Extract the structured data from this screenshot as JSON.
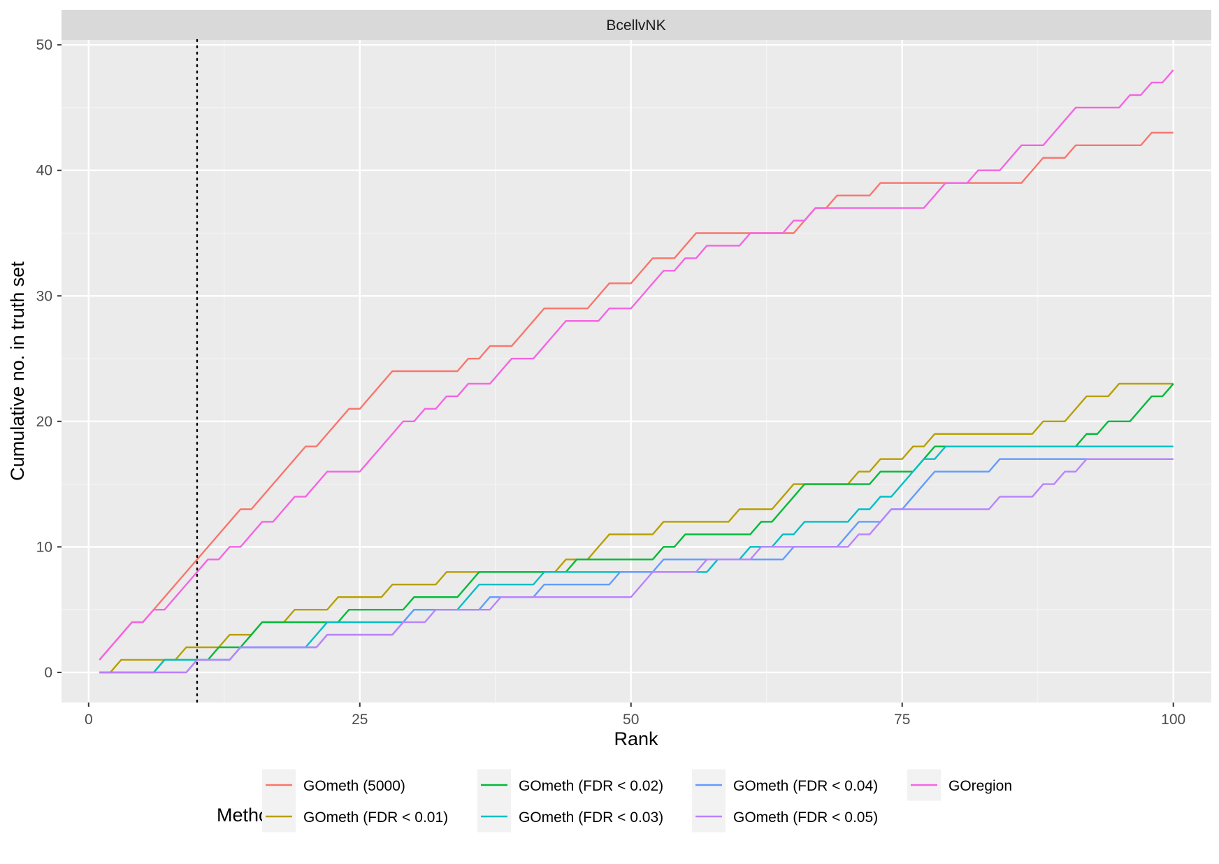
{
  "chart_data": {
    "type": "line",
    "facet_label": "BcellvNK",
    "xlabel": "Rank",
    "ylabel": "Cumulative no. in truth set",
    "xlim": [
      -2.5,
      103.5
    ],
    "ylim": [
      -2.4,
      50.4
    ],
    "x_ticks": [
      0,
      25,
      50,
      75,
      100
    ],
    "x_tick_labels": [
      "0",
      "25",
      "50",
      "75",
      "100"
    ],
    "y_ticks": [
      0,
      10,
      20,
      30,
      40,
      50
    ],
    "y_tick_labels": [
      "0",
      "10",
      "20",
      "30",
      "40",
      "50"
    ],
    "vline": {
      "x": 10,
      "style": "dotted"
    },
    "grid": true,
    "legend": {
      "title": "Method",
      "position": "bottom"
    },
    "series": [
      {
        "name": "GOmeth (5000)",
        "color": "#F8766D",
        "values": [
          1,
          2,
          3,
          4,
          4,
          5,
          6,
          7,
          8,
          9,
          10,
          11,
          12,
          13,
          13,
          14,
          15,
          16,
          17,
          18,
          18,
          19,
          20,
          21,
          21,
          22,
          23,
          24,
          24,
          24,
          24,
          24,
          24,
          24,
          25,
          25,
          26,
          26,
          26,
          27,
          28,
          29,
          29,
          29,
          29,
          29,
          30,
          31,
          31,
          31,
          32,
          33,
          33,
          33,
          34,
          35,
          35,
          35,
          35,
          35,
          35,
          35,
          35,
          35,
          35,
          36,
          37,
          37,
          38,
          38,
          38,
          38,
          39,
          39,
          39,
          39,
          39,
          39,
          39,
          39,
          39,
          39,
          39,
          39,
          39,
          39,
          40,
          41,
          41,
          41,
          42,
          42,
          42,
          42,
          42,
          42,
          42,
          43,
          43,
          43
        ]
      },
      {
        "name": "GOmeth (FDR < 0.01)",
        "color": "#B79F00",
        "values": [
          0,
          0,
          1,
          1,
          1,
          1,
          1,
          1,
          2,
          2,
          2,
          2,
          3,
          3,
          3,
          4,
          4,
          4,
          5,
          5,
          5,
          5,
          6,
          6,
          6,
          6,
          6,
          7,
          7,
          7,
          7,
          7,
          8,
          8,
          8,
          8,
          8,
          8,
          8,
          8,
          8,
          8,
          8,
          9,
          9,
          9,
          10,
          11,
          11,
          11,
          11,
          11,
          12,
          12,
          12,
          12,
          12,
          12,
          12,
          13,
          13,
          13,
          13,
          14,
          15,
          15,
          15,
          15,
          15,
          15,
          16,
          16,
          17,
          17,
          17,
          18,
          18,
          19,
          19,
          19,
          19,
          19,
          19,
          19,
          19,
          19,
          19,
          20,
          20,
          20,
          21,
          22,
          22,
          22,
          23,
          23,
          23,
          23,
          23,
          23
        ]
      },
      {
        "name": "GOmeth (FDR < 0.02)",
        "color": "#00BA38",
        "values": [
          0,
          0,
          0,
          0,
          0,
          0,
          1,
          1,
          1,
          1,
          1,
          2,
          2,
          2,
          3,
          4,
          4,
          4,
          4,
          4,
          4,
          4,
          4,
          5,
          5,
          5,
          5,
          5,
          5,
          6,
          6,
          6,
          6,
          6,
          7,
          8,
          8,
          8,
          8,
          8,
          8,
          8,
          8,
          8,
          9,
          9,
          9,
          9,
          9,
          9,
          9,
          9,
          10,
          10,
          11,
          11,
          11,
          11,
          11,
          11,
          11,
          12,
          12,
          13,
          14,
          15,
          15,
          15,
          15,
          15,
          15,
          15,
          16,
          16,
          16,
          16,
          17,
          18,
          18,
          18,
          18,
          18,
          18,
          18,
          18,
          18,
          18,
          18,
          18,
          18,
          18,
          19,
          19,
          20,
          20,
          20,
          21,
          22,
          22,
          23
        ]
      },
      {
        "name": "GOmeth (FDR < 0.03)",
        "color": "#00BFC4",
        "values": [
          0,
          0,
          0,
          0,
          0,
          0,
          1,
          1,
          1,
          1,
          1,
          1,
          1,
          2,
          2,
          2,
          2,
          2,
          2,
          2,
          3,
          4,
          4,
          4,
          4,
          4,
          4,
          4,
          4,
          5,
          5,
          5,
          5,
          5,
          6,
          7,
          7,
          7,
          7,
          7,
          7,
          8,
          8,
          8,
          8,
          8,
          8,
          8,
          8,
          8,
          8,
          8,
          8,
          8,
          8,
          8,
          8,
          9,
          9,
          9,
          10,
          10,
          10,
          11,
          11,
          12,
          12,
          12,
          12,
          12,
          13,
          13,
          14,
          14,
          15,
          16,
          17,
          17,
          18,
          18,
          18,
          18,
          18,
          18,
          18,
          18,
          18,
          18,
          18,
          18,
          18,
          18,
          18,
          18,
          18,
          18,
          18,
          18,
          18,
          18
        ]
      },
      {
        "name": "GOmeth (FDR < 0.04)",
        "color": "#619CFF",
        "values": [
          0,
          0,
          0,
          0,
          0,
          0,
          0,
          0,
          0,
          1,
          1,
          1,
          1,
          2,
          2,
          2,
          2,
          2,
          2,
          2,
          2,
          3,
          3,
          3,
          3,
          3,
          3,
          3,
          4,
          5,
          5,
          5,
          5,
          5,
          5,
          5,
          6,
          6,
          6,
          6,
          6,
          7,
          7,
          7,
          7,
          7,
          7,
          7,
          8,
          8,
          8,
          8,
          9,
          9,
          9,
          9,
          9,
          9,
          9,
          9,
          9,
          9,
          9,
          9,
          10,
          10,
          10,
          10,
          10,
          11,
          12,
          12,
          12,
          13,
          13,
          14,
          15,
          16,
          16,
          16,
          16,
          16,
          16,
          17,
          17,
          17,
          17,
          17,
          17,
          17,
          17,
          17,
          17,
          17,
          17,
          17,
          17,
          17,
          17,
          17
        ]
      },
      {
        "name": "GOmeth (FDR < 0.05)",
        "color": "#B983FF",
        "values": [
          0,
          0,
          0,
          0,
          0,
          0,
          0,
          0,
          0,
          1,
          1,
          1,
          1,
          2,
          2,
          2,
          2,
          2,
          2,
          2,
          2,
          3,
          3,
          3,
          3,
          3,
          3,
          3,
          4,
          4,
          4,
          5,
          5,
          5,
          5,
          5,
          5,
          6,
          6,
          6,
          6,
          6,
          6,
          6,
          6,
          6,
          6,
          6,
          6,
          6,
          7,
          8,
          8,
          8,
          8,
          8,
          9,
          9,
          9,
          9,
          9,
          10,
          10,
          10,
          10,
          10,
          10,
          10,
          10,
          10,
          11,
          11,
          12,
          13,
          13,
          13,
          13,
          13,
          13,
          13,
          13,
          13,
          13,
          14,
          14,
          14,
          14,
          15,
          15,
          16,
          16,
          17,
          17,
          17,
          17,
          17,
          17,
          17,
          17,
          17
        ]
      },
      {
        "name": "GOregion",
        "color": "#F564E3",
        "values": [
          1,
          2,
          3,
          4,
          4,
          5,
          5,
          6,
          7,
          8,
          9,
          9,
          10,
          10,
          11,
          12,
          12,
          13,
          14,
          14,
          15,
          16,
          16,
          16,
          16,
          17,
          18,
          19,
          20,
          20,
          21,
          21,
          22,
          22,
          23,
          23,
          23,
          24,
          25,
          25,
          25,
          26,
          27,
          28,
          28,
          28,
          28,
          29,
          29,
          29,
          30,
          31,
          32,
          32,
          33,
          33,
          34,
          34,
          34,
          34,
          35,
          35,
          35,
          35,
          36,
          36,
          37,
          37,
          37,
          37,
          37,
          37,
          37,
          37,
          37,
          37,
          37,
          38,
          39,
          39,
          39,
          40,
          40,
          40,
          41,
          42,
          42,
          42,
          43,
          44,
          45,
          45,
          45,
          45,
          45,
          46,
          46,
          47,
          47,
          48
        ]
      }
    ]
  }
}
